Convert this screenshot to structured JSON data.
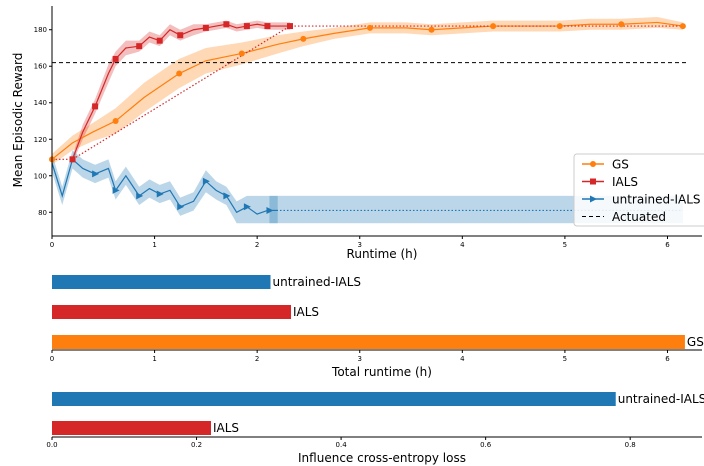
{
  "chart_data": [
    {
      "type": "line",
      "xlabel": "Runtime (h)",
      "ylabel": "Mean Episodic Reward",
      "xlim": [
        0,
        6.2
      ],
      "ylim": [
        67,
        193
      ],
      "xticks": [
        0,
        1,
        2,
        3,
        4,
        5,
        6
      ],
      "yticks": [
        80,
        100,
        120,
        140,
        160,
        180
      ],
      "grid": false,
      "legend_position": "right",
      "reference_line": {
        "name": "Actuated",
        "y": 162,
        "style": "dashed",
        "color": "#000000"
      },
      "series": [
        {
          "name": "GS",
          "color": "#ff7f0e",
          "marker": "circle",
          "x": [
            0,
            0.2,
            0.4,
            0.62,
            0.9,
            1.24,
            1.5,
            1.85,
            2.2,
            2.45,
            2.75,
            3.1,
            3.45,
            3.7,
            4.0,
            4.3,
            4.6,
            4.95,
            5.25,
            5.55,
            5.9,
            6.15
          ],
          "y": [
            109,
            118,
            124,
            130,
            143,
            156,
            163,
            167,
            172,
            175,
            178,
            181,
            181,
            180,
            181,
            182,
            182,
            182,
            183,
            183,
            184,
            182
          ],
          "band_low": [
            106,
            114,
            119,
            123,
            135,
            148,
            156,
            161,
            167,
            171,
            175,
            178,
            178,
            177,
            178,
            179,
            179,
            179,
            180,
            180,
            181,
            180
          ],
          "band_high": [
            112,
            122,
            129,
            137,
            151,
            164,
            170,
            173,
            177,
            179,
            181,
            184,
            184,
            183,
            184,
            185,
            185,
            185,
            186,
            186,
            187,
            184
          ],
          "extended_x": [
            6.15
          ],
          "extended_y": [
            182
          ],
          "marked_x": [
            0,
            0.62,
            1.24,
            1.85,
            2.45,
            3.1,
            3.7,
            4.3,
            4.95,
            5.55,
            6.15
          ],
          "marked_y": [
            109,
            130,
            156,
            167,
            175,
            181,
            180,
            182,
            182,
            183,
            182
          ]
        },
        {
          "name": "IALS",
          "color": "#d62728",
          "marker": "square",
          "x": [
            0.2,
            0.3,
            0.42,
            0.55,
            0.62,
            0.72,
            0.85,
            0.95,
            1.05,
            1.15,
            1.25,
            1.38,
            1.5,
            1.6,
            1.7,
            1.8,
            1.9,
            2.0,
            2.1,
            2.2,
            2.32
          ],
          "y": [
            109,
            124,
            138,
            156,
            164,
            170,
            171,
            176,
            174,
            180,
            177,
            180,
            181,
            182,
            183,
            181,
            182,
            183,
            182,
            182,
            182
          ],
          "band_low": [
            107,
            120,
            134,
            151,
            160,
            166,
            168,
            173,
            171,
            177,
            174,
            177,
            179,
            180,
            181,
            179,
            180,
            181,
            180,
            180,
            180
          ],
          "band_high": [
            111,
            128,
            142,
            161,
            168,
            174,
            174,
            179,
            177,
            183,
            180,
            183,
            183,
            184,
            185,
            183,
            184,
            185,
            184,
            184,
            184
          ],
          "extended_x": [
            0,
            0.2,
            2.32,
            6.15
          ],
          "extended_y": [
            109,
            109,
            182,
            182
          ],
          "marked_x": [
            0.2,
            0.42,
            0.62,
            0.85,
            1.05,
            1.25,
            1.5,
            1.7,
            1.9,
            2.1,
            2.32
          ],
          "marked_y": [
            109,
            138,
            164,
            171,
            174,
            177,
            181,
            183,
            182,
            182,
            182
          ]
        },
        {
          "name": "untrained-IALS",
          "color": "#1f77b4",
          "marker": "triangle-right",
          "x": [
            0,
            0.1,
            0.2,
            0.3,
            0.42,
            0.55,
            0.62,
            0.72,
            0.85,
            0.95,
            1.05,
            1.15,
            1.25,
            1.38,
            1.5,
            1.6,
            1.7,
            1.8,
            1.9,
            2.0,
            2.1,
            2.2
          ],
          "y": [
            107,
            89,
            109,
            104,
            101,
            104,
            92,
            100,
            89,
            93,
            90,
            92,
            83,
            86,
            97,
            92,
            89,
            80,
            83,
            79,
            81,
            81
          ],
          "band_low": [
            102,
            84,
            104,
            99,
            96,
            99,
            87,
            95,
            84,
            88,
            85,
            87,
            78,
            81,
            91,
            87,
            84,
            74,
            74,
            74,
            74,
            74
          ],
          "band_high": [
            112,
            94,
            114,
            109,
            106,
            109,
            97,
            105,
            94,
            98,
            95,
            97,
            88,
            91,
            103,
            97,
            94,
            86,
            89,
            89,
            89,
            89
          ],
          "extended_x": [
            2.12,
            6.15
          ],
          "extended_y": [
            81,
            81
          ],
          "extended_band": [
            74,
            89
          ],
          "marked_x": [
            0.42,
            0.62,
            0.85,
            1.05,
            1.25,
            1.5,
            1.7,
            1.9,
            2.12
          ],
          "marked_y": [
            101,
            92,
            89,
            90,
            83,
            97,
            89,
            83,
            81
          ]
        }
      ],
      "legend": [
        "GS",
        "IALS",
        "untrained-IALS",
        "Actuated"
      ]
    },
    {
      "type": "bar",
      "orientation": "horizontal",
      "xlabel": "Total runtime (h)",
      "xlim": [
        0,
        6.2
      ],
      "xticks": [
        0,
        1,
        2,
        3,
        4,
        5,
        6
      ],
      "categories": [
        "untrained-IALS",
        "IALS",
        "GS"
      ],
      "values": [
        2.13,
        2.33,
        6.17
      ],
      "colors": [
        "#1f77b4",
        "#d62728",
        "#ff7f0e"
      ]
    },
    {
      "type": "bar",
      "orientation": "horizontal",
      "xlabel": "Influence cross-entropy loss",
      "xlim": [
        0,
        0.88
      ],
      "xticks": [
        0.0,
        0.2,
        0.4,
        0.6,
        0.8
      ],
      "tick_labels": [
        "0.0",
        "0.2",
        "0.4",
        "0.6",
        "0.8"
      ],
      "categories": [
        "untrained-IALS",
        "IALS"
      ],
      "values": [
        0.78,
        0.22
      ],
      "colors": [
        "#1f77b4",
        "#d62728"
      ]
    }
  ]
}
